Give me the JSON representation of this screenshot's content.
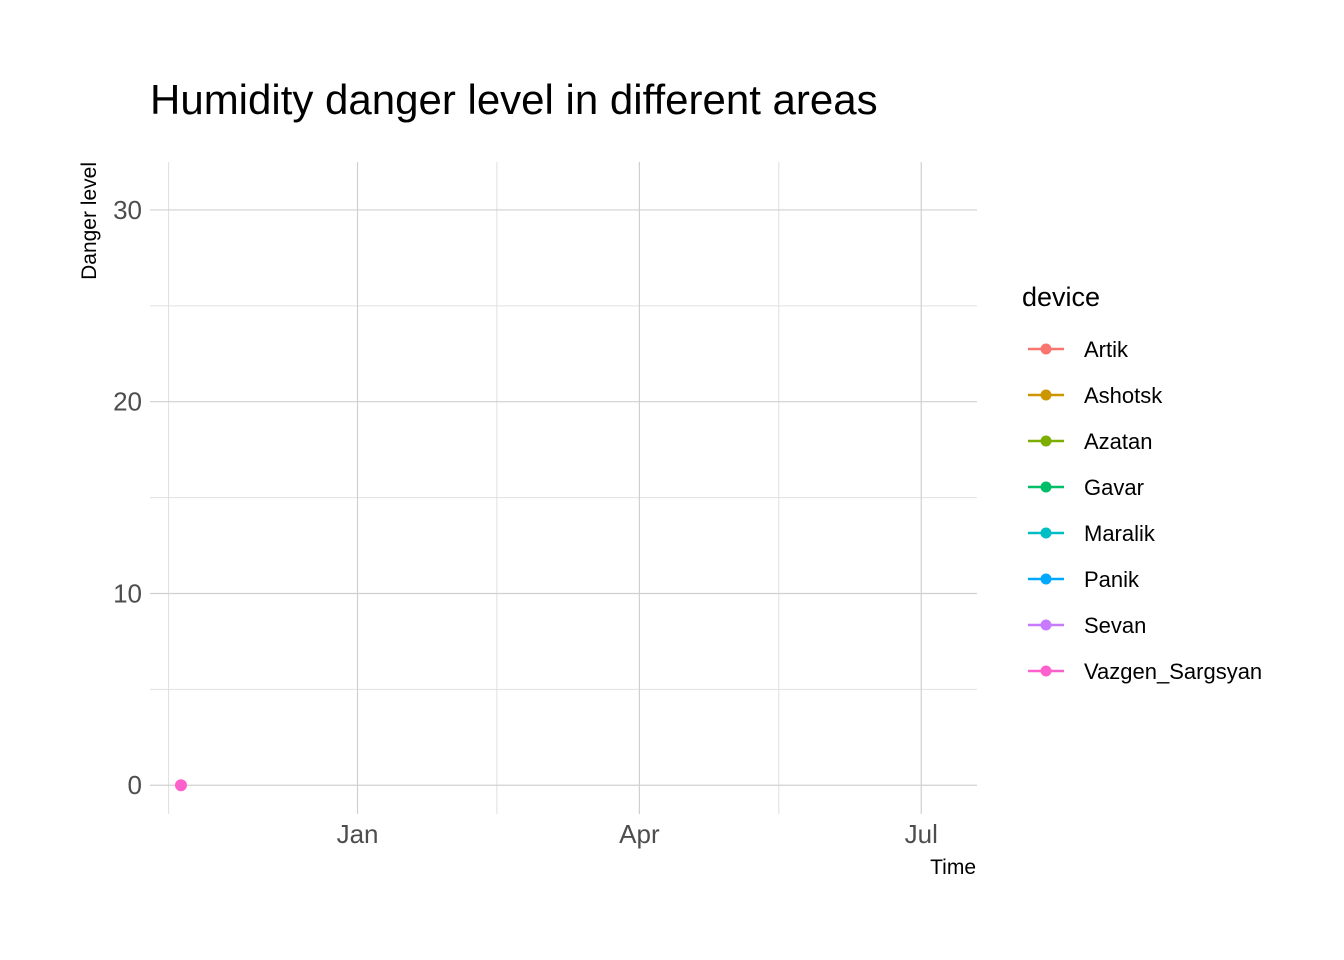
{
  "chart_data": {
    "type": "line",
    "title": "Humidity danger level in different areas",
    "xlabel": "Time",
    "ylabel": "Danger level",
    "x_ticks": [
      {
        "label": "Jan",
        "date": "2024-01-01"
      },
      {
        "label": "Apr",
        "date": "2024-04-01"
      },
      {
        "label": "Jul",
        "date": "2024-07-01"
      }
    ],
    "x_minor_dates": [
      "2023-11-01",
      "2024-02-15",
      "2024-05-16"
    ],
    "xlim": [
      "2023-10-26",
      "2024-07-19"
    ],
    "y_ticks": [
      0,
      10,
      20,
      30
    ],
    "ylim": [
      -1.5,
      32.5
    ],
    "grid": true,
    "legend": {
      "title": "device",
      "position": "right"
    },
    "series": [
      {
        "name": "Artik",
        "color": "#F8766D",
        "points": []
      },
      {
        "name": "Ashotsk",
        "color": "#CD9600",
        "points": []
      },
      {
        "name": "Azatan",
        "color": "#7CAE00",
        "points": []
      },
      {
        "name": "Gavar",
        "color": "#00BE67",
        "points": []
      },
      {
        "name": "Maralik",
        "color": "#00BFC4",
        "points": []
      },
      {
        "name": "Panik",
        "color": "#00A9FF",
        "points": []
      },
      {
        "name": "Sevan",
        "color": "#C77CFF",
        "points": []
      },
      {
        "name": "Vazgen_Sargsyan",
        "color": "#FF61CC",
        "points": [
          {
            "x": "2023-11-05",
            "y": 0
          }
        ]
      }
    ]
  }
}
